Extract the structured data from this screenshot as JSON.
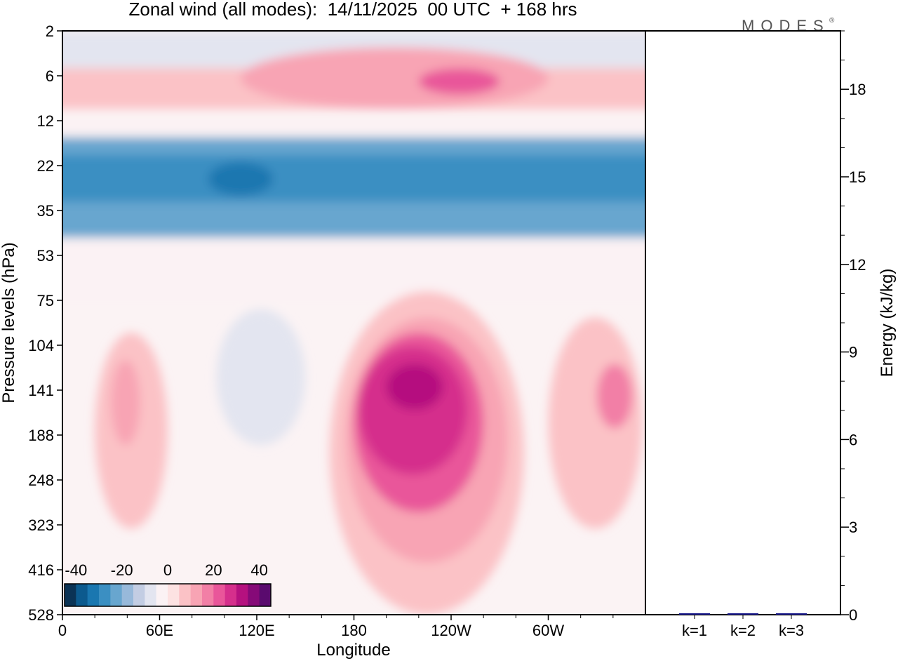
{
  "chart_data": [
    {
      "type": "heatmap",
      "title": "Zonal wind (all modes):  14/11/2025  00 UTC  + 168 hrs",
      "xlabel": "Longitude",
      "ylabel": "Pressure levels (hPa)",
      "x_ticks": [
        "0",
        "60E",
        "120E",
        "180",
        "120W",
        "60W"
      ],
      "x_tick_values": [
        0,
        60,
        120,
        180,
        240,
        300
      ],
      "x_range": [
        0,
        360
      ],
      "y_ticks": [
        "2",
        "6",
        "12",
        "22",
        "35",
        "53",
        "75",
        "104",
        "141",
        "188",
        "248",
        "323",
        "416",
        "528"
      ],
      "colorbar": {
        "ticks": [
          "-40",
          "-20",
          "0",
          "20",
          "40"
        ],
        "tick_values": [
          -40,
          -20,
          0,
          20,
          40
        ],
        "range": [
          -45,
          45
        ],
        "colors": [
          "#0b3355",
          "#0c5a8e",
          "#1a77b0",
          "#3b8fc2",
          "#68a6cf",
          "#98b9da",
          "#c3cde3",
          "#e3e5f0",
          "#fbf2f4",
          "#fde2e2",
          "#fbc2c6",
          "#f8a4b4",
          "#f27fa6",
          "#e9569a",
          "#d52f8c",
          "#b5117f",
          "#860a78",
          "#5a0a6e"
        ]
      },
      "features": [
        {
          "lon_min": 0,
          "lon_max": 360,
          "level_min": 2,
          "level_max": 5,
          "value": -8
        },
        {
          "lon_min": 0,
          "lon_max": 360,
          "level_min": 5,
          "level_max": 10,
          "value": 8
        },
        {
          "lon_min": 110,
          "lon_max": 300,
          "level_min": 3,
          "level_max": 10,
          "value": 14
        },
        {
          "lon_min": 220,
          "lon_max": 270,
          "level_min": 5,
          "level_max": 8,
          "value": 20
        },
        {
          "lon_min": 0,
          "lon_max": 360,
          "level_min": 12,
          "level_max": 16,
          "value": -5
        },
        {
          "lon_min": 0,
          "lon_max": 360,
          "level_min": 15,
          "level_max": 45,
          "value": -22
        },
        {
          "lon_min": 0,
          "lon_max": 360,
          "level_min": 19,
          "level_max": 32,
          "value": -30
        },
        {
          "lon_min": 90,
          "lon_max": 130,
          "level_min": 21,
          "level_max": 30,
          "value": -35
        },
        {
          "lon_min": 0,
          "lon_max": 360,
          "level_min": 45,
          "level_max": 75,
          "value": -5
        },
        {
          "lon_min": 95,
          "lon_max": 150,
          "level_min": 80,
          "level_max": 200,
          "value": -8
        },
        {
          "lon_min": 20,
          "lon_max": 65,
          "level_min": 95,
          "level_max": 330,
          "value": 8
        },
        {
          "lon_min": 30,
          "lon_max": 48,
          "level_min": 115,
          "level_max": 200,
          "value": 14
        },
        {
          "lon_min": 165,
          "lon_max": 285,
          "level_min": 70,
          "level_max": 528,
          "value": 6
        },
        {
          "lon_min": 175,
          "lon_max": 275,
          "level_min": 85,
          "level_max": 400,
          "value": 12
        },
        {
          "lon_min": 180,
          "lon_max": 260,
          "level_min": 95,
          "level_max": 300,
          "value": 20
        },
        {
          "lon_min": 183,
          "lon_max": 250,
          "level_min": 105,
          "level_max": 240,
          "value": 26
        },
        {
          "lon_min": 200,
          "lon_max": 235,
          "level_min": 118,
          "level_max": 160,
          "value": 32
        },
        {
          "lon_min": 300,
          "lon_max": 358,
          "level_min": 85,
          "level_max": 330,
          "value": 8
        },
        {
          "lon_min": 330,
          "lon_max": 352,
          "level_min": 118,
          "level_max": 180,
          "value": 16
        }
      ]
    },
    {
      "type": "bar",
      "ylabel": "Energy (kJ/kg)",
      "categories": [
        "k=1",
        "k=2",
        "k=3"
      ],
      "values": [
        0.05,
        0.03,
        0.02
      ],
      "ylim": [
        0,
        20
      ],
      "y_ticks": [
        "0",
        "3",
        "6",
        "9",
        "12",
        "15",
        "18"
      ],
      "y_tick_values": [
        0,
        3,
        6,
        9,
        12,
        15,
        18
      ],
      "bar_color": "#1a1a8c"
    }
  ],
  "logo": {
    "text": "MODES",
    "mark": "®"
  }
}
